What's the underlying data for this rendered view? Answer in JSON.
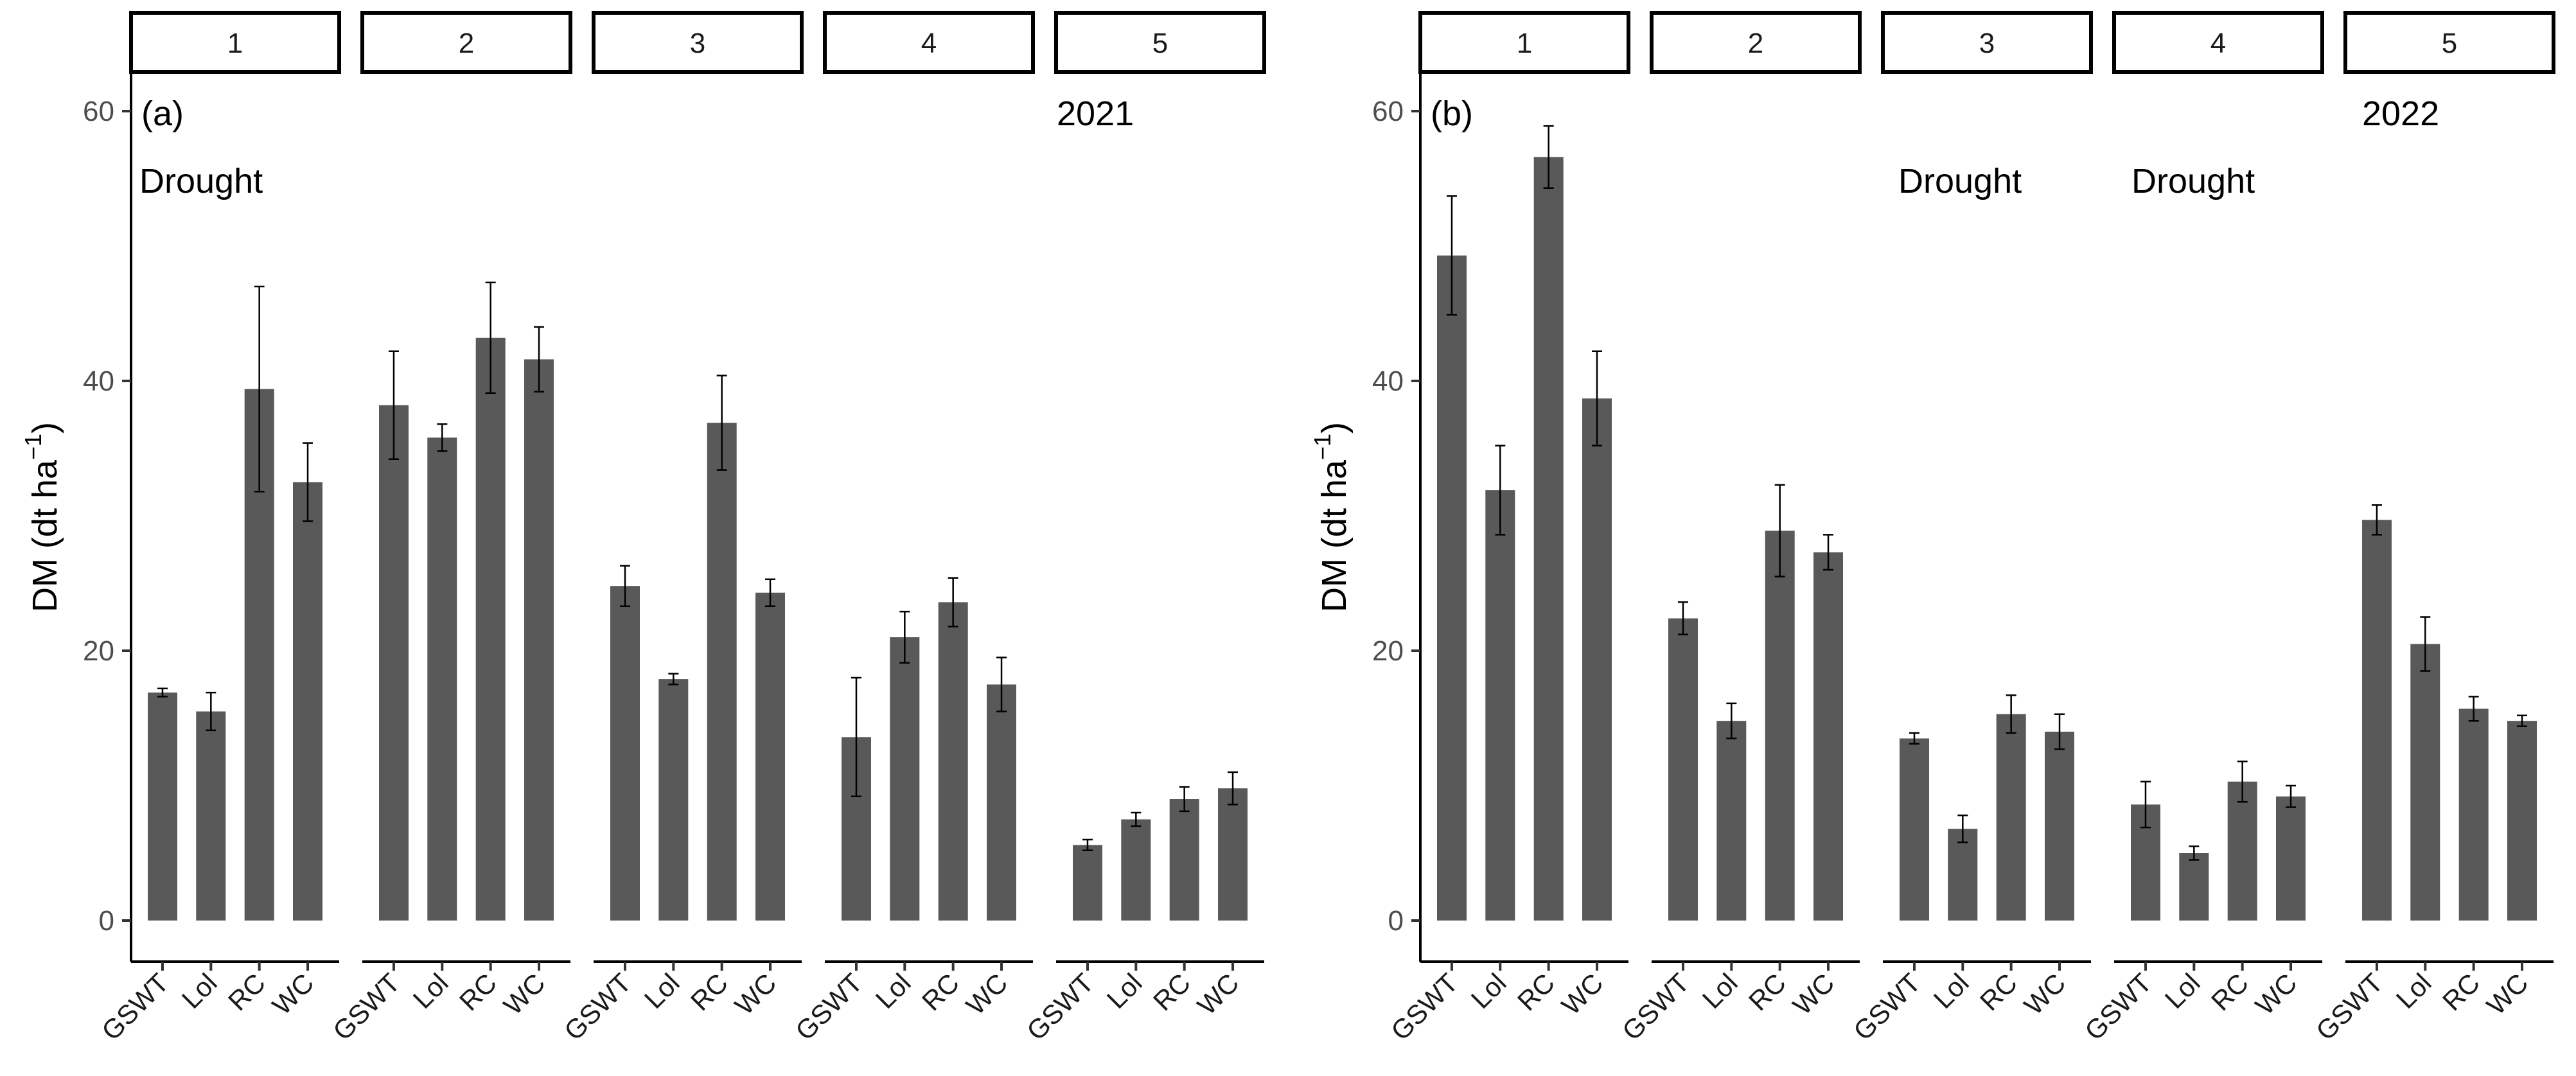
{
  "chart_data": [
    {
      "type": "bar",
      "panel_label": "(a)",
      "year_label": "2021",
      "ylabel": "DM (dt  ha",
      "ylabel_superscript": "−1",
      "ylabel_close": ")",
      "ylim": [
        -3,
        62
      ],
      "yticks": [
        0,
        20,
        40,
        60
      ],
      "facets": [
        "1",
        "2",
        "3",
        "4",
        "5"
      ],
      "categories": [
        "GSWT",
        "Lol",
        "RC",
        "WC"
      ],
      "drought_facets": [
        "1"
      ],
      "drought_label": "Drought",
      "values": [
        [
          16.9,
          15.5,
          39.4,
          32.5
        ],
        [
          38.2,
          35.8,
          43.2,
          41.6
        ],
        [
          24.8,
          17.9,
          36.9,
          24.3
        ],
        [
          13.6,
          21.0,
          23.6,
          17.5
        ],
        [
          5.6,
          7.5,
          9.0,
          9.8
        ]
      ],
      "errors": [
        [
          0.3,
          1.4,
          7.6,
          2.9
        ],
        [
          4.0,
          1.0,
          4.1,
          2.4
        ],
        [
          1.5,
          0.4,
          3.5,
          1.0
        ],
        [
          4.4,
          1.9,
          1.8,
          2.0
        ],
        [
          0.4,
          0.5,
          0.9,
          1.2
        ]
      ]
    },
    {
      "type": "bar",
      "panel_label": "(b)",
      "year_label": "2022",
      "ylabel": "DM (dt  ha",
      "ylabel_superscript": "−1",
      "ylabel_close": ")",
      "ylim": [
        -3,
        62
      ],
      "yticks": [
        0,
        20,
        40,
        60
      ],
      "facets": [
        "1",
        "2",
        "3",
        "4",
        "5"
      ],
      "categories": [
        "GSWT",
        "Lol",
        "RC",
        "WC"
      ],
      "drought_facets": [
        "3",
        "4"
      ],
      "drought_label": "Drought",
      "values": [
        [
          49.3,
          31.9,
          56.6,
          38.7
        ],
        [
          22.4,
          14.8,
          28.9,
          27.3
        ],
        [
          13.5,
          6.8,
          15.3,
          14.0
        ],
        [
          8.6,
          5.0,
          10.3,
          9.2
        ],
        [
          29.7,
          20.5,
          15.7,
          14.8
        ]
      ],
      "errors": [
        [
          4.4,
          3.3,
          2.3,
          3.5
        ],
        [
          1.2,
          1.3,
          3.4,
          1.3
        ],
        [
          0.4,
          1.0,
          1.4,
          1.3
        ],
        [
          1.7,
          0.5,
          1.5,
          0.8
        ],
        [
          1.1,
          2.0,
          0.9,
          0.4
        ]
      ]
    }
  ]
}
